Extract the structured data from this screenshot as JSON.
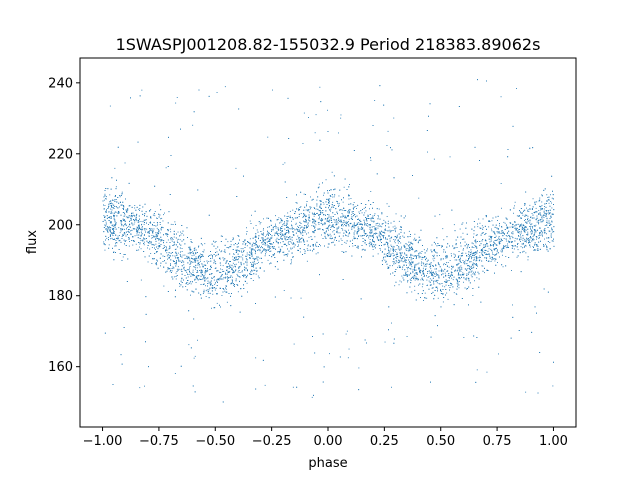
{
  "chart_data": {
    "type": "scatter",
    "title": "1SWASPJ001208.82-155032.9 Period 218383.89062s",
    "xlabel": "phase",
    "ylabel": "flux",
    "xlim": [
      -1.1,
      1.1
    ],
    "ylim": [
      143,
      247
    ],
    "x_ticks": [
      -1.0,
      -0.75,
      -0.5,
      -0.25,
      0.0,
      0.25,
      0.5,
      0.75,
      1.0
    ],
    "x_tick_labels": [
      "−1.00",
      "−0.75",
      "−0.50",
      "−0.25",
      "0.00",
      "0.25",
      "0.50",
      "0.75",
      "1.00"
    ],
    "y_ticks": [
      160,
      180,
      200,
      220,
      240
    ],
    "y_tick_labels": [
      "160",
      "180",
      "200",
      "220",
      "240"
    ],
    "grid": false,
    "marker_color": "#1f77b4",
    "series": [
      {
        "phase_flux_model": {
          "description_points": [
            [
              -1.0,
              204
            ],
            [
              -0.9,
              202
            ],
            [
              -0.8,
              198
            ],
            [
              -0.7,
              191
            ],
            [
              -0.6,
              187
            ],
            [
              -0.5,
              184
            ],
            [
              -0.4,
              187
            ],
            [
              -0.3,
              193
            ],
            [
              -0.2,
              198
            ],
            [
              -0.1,
              200
            ],
            [
              0.0,
              204
            ],
            [
              0.1,
              202
            ],
            [
              0.2,
              198
            ],
            [
              0.3,
              191
            ],
            [
              0.4,
              187
            ],
            [
              0.5,
              184
            ],
            [
              0.6,
              187
            ],
            [
              0.7,
              193
            ],
            [
              0.8,
              198
            ],
            [
              0.9,
              200
            ],
            [
              1.0,
              204
            ]
          ],
          "secondary_branch": [
            [
              -1.0,
              197
            ],
            [
              -0.75,
              199
            ],
            [
              -0.55,
              190
            ],
            [
              -0.3,
              196
            ],
            [
              0.0,
              198
            ],
            [
              0.25,
              199
            ],
            [
              0.45,
              190
            ],
            [
              0.7,
              196
            ],
            [
              1.0,
              197
            ]
          ]
        }
      }
    ]
  }
}
